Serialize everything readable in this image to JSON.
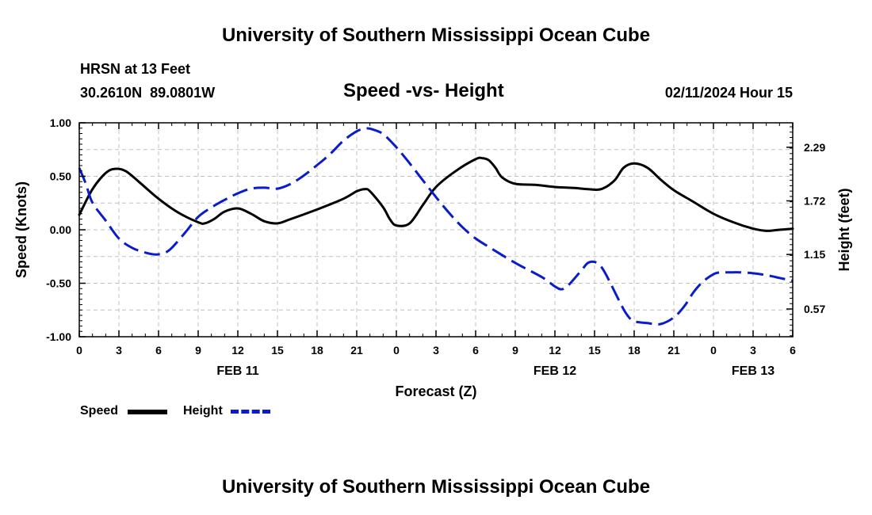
{
  "page": {
    "top_title": "University of Southern Mississippi Ocean Cube",
    "bottom_title": "University of Southern Mississippi Ocean Cube",
    "station": "HRSN at 13 Feet",
    "coords": "30.2610N  89.0801W",
    "date": "02/11/2024 Hour 15"
  },
  "legend": {
    "speed_label": "Speed",
    "height_label": "Height"
  },
  "colors": {
    "speed": "#000000",
    "height": "#0a1ccc",
    "grid": "#c0c0c0"
  },
  "chart_data": {
    "type": "line",
    "title": "Speed -vs- Height",
    "xlabel": "Forecast (Z)",
    "ylabel": "Speed (Knots)",
    "y2label": "Height (feet)",
    "xlim": [
      0,
      54
    ],
    "ylim": [
      -1.0,
      1.0
    ],
    "y2lim": [
      0.275,
      2.55
    ],
    "x_ticks": [
      0,
      3,
      6,
      9,
      12,
      15,
      18,
      21,
      24,
      27,
      30,
      33,
      36,
      39,
      42,
      45,
      48,
      51,
      54
    ],
    "x_tick_labels": [
      "0",
      "3",
      "6",
      "9",
      "12",
      "15",
      "18",
      "21",
      "0",
      "3",
      "6",
      "9",
      "12",
      "15",
      "18",
      "21",
      "0",
      "3",
      "6"
    ],
    "y_ticks": [
      -1.0,
      -0.5,
      0.0,
      0.5,
      1.0
    ],
    "y_tick_labels": [
      "-1.00",
      "-0.50",
      "0.00",
      "0.50",
      "1.00"
    ],
    "y2_ticks": [
      0.57,
      1.15,
      1.72,
      2.29
    ],
    "y2_tick_labels": [
      "0.57",
      "1.15",
      "1.72",
      "2.29"
    ],
    "date_labels": [
      {
        "x": 12,
        "label": "FEB 11"
      },
      {
        "x": 36,
        "label": "FEB 12"
      },
      {
        "x": 51,
        "label": "FEB 13"
      }
    ],
    "series": [
      {
        "name": "Speed",
        "axis": "left",
        "style": "solid",
        "x": [
          0,
          1,
          2,
          2.7,
          3.5,
          4.5,
          6,
          7.5,
          9,
          9.5,
          10.2,
          11,
          12,
          13,
          14,
          15,
          16,
          18,
          20,
          21,
          21.6,
          22,
          23,
          23.5,
          24,
          25,
          26,
          27,
          28.5,
          30,
          30.5,
          31,
          31.5,
          32,
          33,
          34.5,
          36,
          37.5,
          38.5,
          39.5,
          40.5,
          41.2,
          42,
          43,
          44,
          45,
          46.5,
          48,
          49.5,
          51,
          52,
          53,
          54
        ],
        "y": [
          0.14,
          0.38,
          0.53,
          0.57,
          0.55,
          0.45,
          0.29,
          0.16,
          0.07,
          0.06,
          0.1,
          0.17,
          0.2,
          0.15,
          0.08,
          0.06,
          0.1,
          0.19,
          0.29,
          0.36,
          0.38,
          0.36,
          0.21,
          0.1,
          0.04,
          0.06,
          0.23,
          0.4,
          0.55,
          0.66,
          0.67,
          0.65,
          0.58,
          0.49,
          0.43,
          0.42,
          0.4,
          0.39,
          0.38,
          0.38,
          0.46,
          0.58,
          0.62,
          0.58,
          0.47,
          0.37,
          0.26,
          0.15,
          0.07,
          0.01,
          -0.01,
          0.0,
          0.01
        ]
      },
      {
        "name": "Height",
        "axis": "right",
        "style": "dashed",
        "x": [
          0,
          0.5,
          1,
          2,
          3,
          4,
          5,
          5.8,
          6.5,
          7,
          8,
          9,
          10,
          11,
          12,
          13,
          14,
          15,
          16,
          17,
          18,
          19,
          20,
          21,
          21.7,
          22.2,
          23,
          24,
          25,
          26,
          27,
          28,
          29,
          30,
          31,
          33,
          35,
          36,
          36.5,
          37,
          38,
          38.5,
          39,
          39.5,
          40,
          41,
          41.5,
          42,
          43,
          44,
          45,
          45.8,
          46.5,
          47.2,
          48,
          48.5,
          49,
          49.5,
          50,
          51,
          52,
          53,
          54
        ],
        "y": [
          2.07,
          1.9,
          1.7,
          1.51,
          1.32,
          1.22,
          1.17,
          1.15,
          1.17,
          1.22,
          1.38,
          1.55,
          1.65,
          1.73,
          1.8,
          1.85,
          1.86,
          1.85,
          1.9,
          1.99,
          2.1,
          2.22,
          2.36,
          2.46,
          2.49,
          2.48,
          2.43,
          2.29,
          2.12,
          1.94,
          1.76,
          1.59,
          1.44,
          1.32,
          1.23,
          1.06,
          0.91,
          0.81,
          0.78,
          0.82,
          0.98,
          1.06,
          1.07,
          1.02,
          0.9,
          0.62,
          0.5,
          0.44,
          0.42,
          0.41,
          0.48,
          0.6,
          0.75,
          0.86,
          0.94,
          0.96,
          0.96,
          0.96,
          0.96,
          0.95,
          0.93,
          0.9,
          0.87
        ]
      }
    ]
  }
}
